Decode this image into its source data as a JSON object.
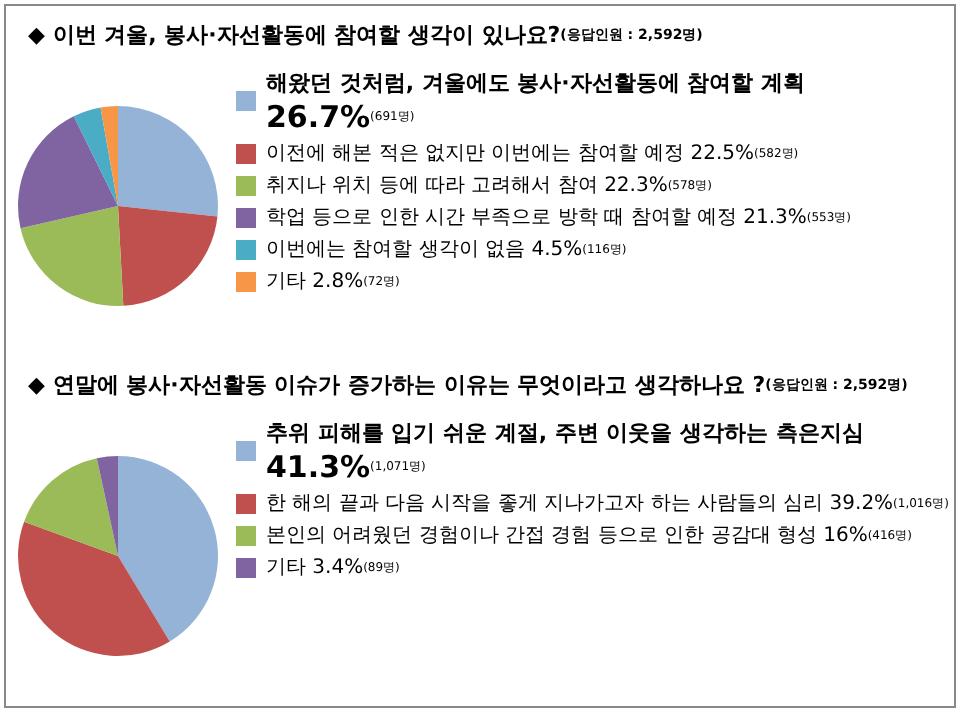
{
  "chart_data": [
    {
      "type": "pie",
      "title": "◆ 이번 겨울, 봉사·자선활동에 참여할 생각이 있나요?",
      "subtitle": "(응답인원 : 2,592명)",
      "categories": [
        "해왔던 것처럼, 겨울에도 봉사·자선활동에 참여할 계획",
        "이전에 해본 적은 없지만 이번에는 참여할 예정",
        "취지나 위치 등에 따라 고려해서 참여",
        "학업 등으로 인한 시간 부족으로 방학 때 참여할 예정",
        "이번에는 참여할 생각이 없음",
        "기타"
      ],
      "values": [
        26.7,
        22.5,
        22.3,
        21.3,
        4.5,
        2.8
      ],
      "value_labels": [
        "26.7%(691명)",
        "22.5%(582명)",
        "22.3%(578명)",
        "21.3%(553명)",
        "4.5%(116명)",
        "2.8%(72명)"
      ],
      "colors": [
        "#95b3d7",
        "#c0504d",
        "#9bbb59",
        "#8064a2",
        "#4bacc6",
        "#f79646"
      ],
      "legend": "right"
    },
    {
      "type": "pie",
      "title": "◆ 연말에 봉사·자선활동 이슈가 증가하는 이유는 무엇이라고 생각하나요 ?",
      "subtitle": "(응답인원 : 2,592명)",
      "categories": [
        "추위 피해를 입기 쉬운 계절, 주변 이웃을 생각하는 측은지심",
        "한 해의 끝과 다음 시작을 좋게 지나가고자 하는 사람들의 심리",
        "본인의 어려웠던 경험이나 간접 경험 등으로 인한 공감대 형성",
        "기타"
      ],
      "values": [
        41.3,
        39.2,
        16,
        3.4
      ],
      "value_labels": [
        "41.3%(1,071명)",
        "39.2%(1,016명)",
        "16%(416명)",
        "3.4%(89명)"
      ],
      "colors": [
        "#95b3d7",
        "#c0504d",
        "#9bbb59",
        "#8064a2"
      ],
      "legend": "right"
    }
  ]
}
